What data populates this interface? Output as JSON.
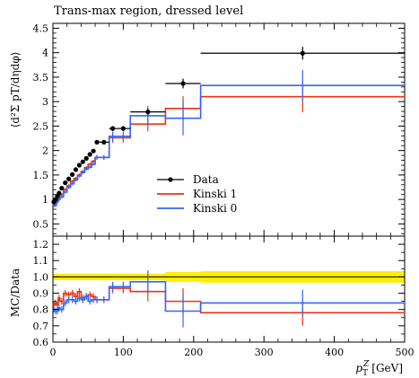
{
  "chart_data": [
    {
      "type": "line",
      "title": "Trans-max region, dressed level",
      "ylabel": "⟨d²Σ pT/dηdφ⟩",
      "xlim": [
        0,
        500
      ],
      "ylim": [
        0.25,
        4.6
      ],
      "yticks": [
        0.5,
        1,
        1.5,
        2,
        2.5,
        3,
        3.5,
        4,
        4.5
      ],
      "ytick_labels": [
        "0.5",
        "1",
        "1.5",
        "2",
        "2.5",
        "3",
        "3.5",
        "4",
        "4.5"
      ],
      "legend_position": "center",
      "bin_edges": [
        0,
        2.5,
        5,
        7.5,
        10,
        15,
        20,
        25,
        30,
        35,
        40,
        45,
        50,
        55,
        60,
        65,
        80,
        90,
        110,
        160,
        210,
        500
      ],
      "series": [
        {
          "name": "Data",
          "color": "#000000",
          "style": "points",
          "values": [
            0.95,
            1.0,
            1.07,
            1.13,
            1.23,
            1.34,
            1.42,
            1.51,
            1.61,
            1.7,
            1.77,
            1.84,
            1.92,
            1.99,
            2.17,
            2.17,
            2.45,
            2.45,
            2.79,
            3.37,
            3.99
          ],
          "errors": [
            0.03,
            0.03,
            0.03,
            0.03,
            0.03,
            0.03,
            0.03,
            0.03,
            0.03,
            0.03,
            0.03,
            0.03,
            0.03,
            0.03,
            0.03,
            0.03,
            0.05,
            0.05,
            0.07,
            0.1,
            0.13
          ]
        },
        {
          "name": "Kinski 1",
          "color": "#ee3311",
          "style": "histogram",
          "values": [
            0.9,
            0.93,
            0.98,
            1.03,
            1.1,
            1.2,
            1.28,
            1.37,
            1.43,
            1.5,
            1.57,
            1.65,
            1.72,
            1.78,
            1.86,
            1.86,
            2.26,
            2.26,
            2.54,
            2.86,
            3.1
          ],
          "errors": [
            0.03,
            0.03,
            0.03,
            0.03,
            0.03,
            0.03,
            0.03,
            0.03,
            0.03,
            0.03,
            0.03,
            0.03,
            0.03,
            0.03,
            0.05,
            0.05,
            0.1,
            0.1,
            0.15,
            0.25,
            0.32
          ]
        },
        {
          "name": "Kinski 0",
          "color": "#3366ff",
          "style": "histogram",
          "values": [
            0.87,
            0.88,
            0.95,
            1.0,
            1.05,
            1.15,
            1.25,
            1.32,
            1.4,
            1.48,
            1.55,
            1.62,
            1.66,
            1.72,
            1.86,
            1.86,
            2.29,
            2.29,
            2.71,
            2.66,
            3.33
          ],
          "errors": [
            0.03,
            0.03,
            0.03,
            0.03,
            0.03,
            0.03,
            0.03,
            0.03,
            0.03,
            0.03,
            0.03,
            0.03,
            0.03,
            0.03,
            0.05,
            0.05,
            0.1,
            0.1,
            0.2,
            0.35,
            0.32
          ]
        }
      ]
    },
    {
      "type": "line",
      "ylabel": "MC/Data",
      "xlabel": "p_T^Z [GeV]",
      "xlim": [
        0,
        500
      ],
      "ylim": [
        0.6,
        1.25
      ],
      "xticks": [
        0,
        100,
        200,
        300,
        400,
        500
      ],
      "xtick_labels": [
        "0",
        "100",
        "200",
        "300",
        "400",
        "500"
      ],
      "yticks": [
        0.6,
        0.7,
        0.8,
        0.9,
        1.0,
        1.1,
        1.2
      ],
      "ytick_labels": [
        "0.6",
        "0.7",
        "0.8",
        "0.9",
        "1.0",
        "1.1",
        "1.2"
      ],
      "band_color": "#ffee00",
      "band_halfwidths": [
        0.02,
        0.02,
        0.02,
        0.02,
        0.02,
        0.02,
        0.02,
        0.02,
        0.02,
        0.02,
        0.02,
        0.02,
        0.02,
        0.02,
        0.02,
        0.02,
        0.02,
        0.02,
        0.02,
        0.03,
        0.035
      ],
      "series": [
        {
          "name": "Kinski 1",
          "color": "#ee3311",
          "values": [
            0.83,
            0.84,
            0.83,
            0.87,
            0.85,
            0.9,
            0.89,
            0.9,
            0.88,
            0.91,
            0.87,
            0.88,
            0.89,
            0.88,
            0.86,
            0.86,
            0.93,
            0.93,
            0.91,
            0.85,
            0.78
          ],
          "errors": [
            0.02,
            0.02,
            0.02,
            0.02,
            0.02,
            0.02,
            0.02,
            0.02,
            0.02,
            0.02,
            0.02,
            0.02,
            0.02,
            0.02,
            0.02,
            0.02,
            0.03,
            0.03,
            0.06,
            0.08,
            0.08
          ]
        },
        {
          "name": "Kinski 0",
          "color": "#3366ff",
          "values": [
            0.8,
            0.79,
            0.79,
            0.81,
            0.8,
            0.84,
            0.86,
            0.86,
            0.85,
            0.87,
            0.86,
            0.88,
            0.85,
            0.86,
            0.86,
            0.86,
            0.94,
            0.94,
            0.97,
            0.79,
            0.84
          ],
          "errors": [
            0.02,
            0.02,
            0.02,
            0.02,
            0.02,
            0.02,
            0.02,
            0.02,
            0.02,
            0.02,
            0.02,
            0.02,
            0.02,
            0.02,
            0.02,
            0.02,
            0.03,
            0.03,
            0.07,
            0.1,
            0.08
          ]
        }
      ]
    }
  ]
}
